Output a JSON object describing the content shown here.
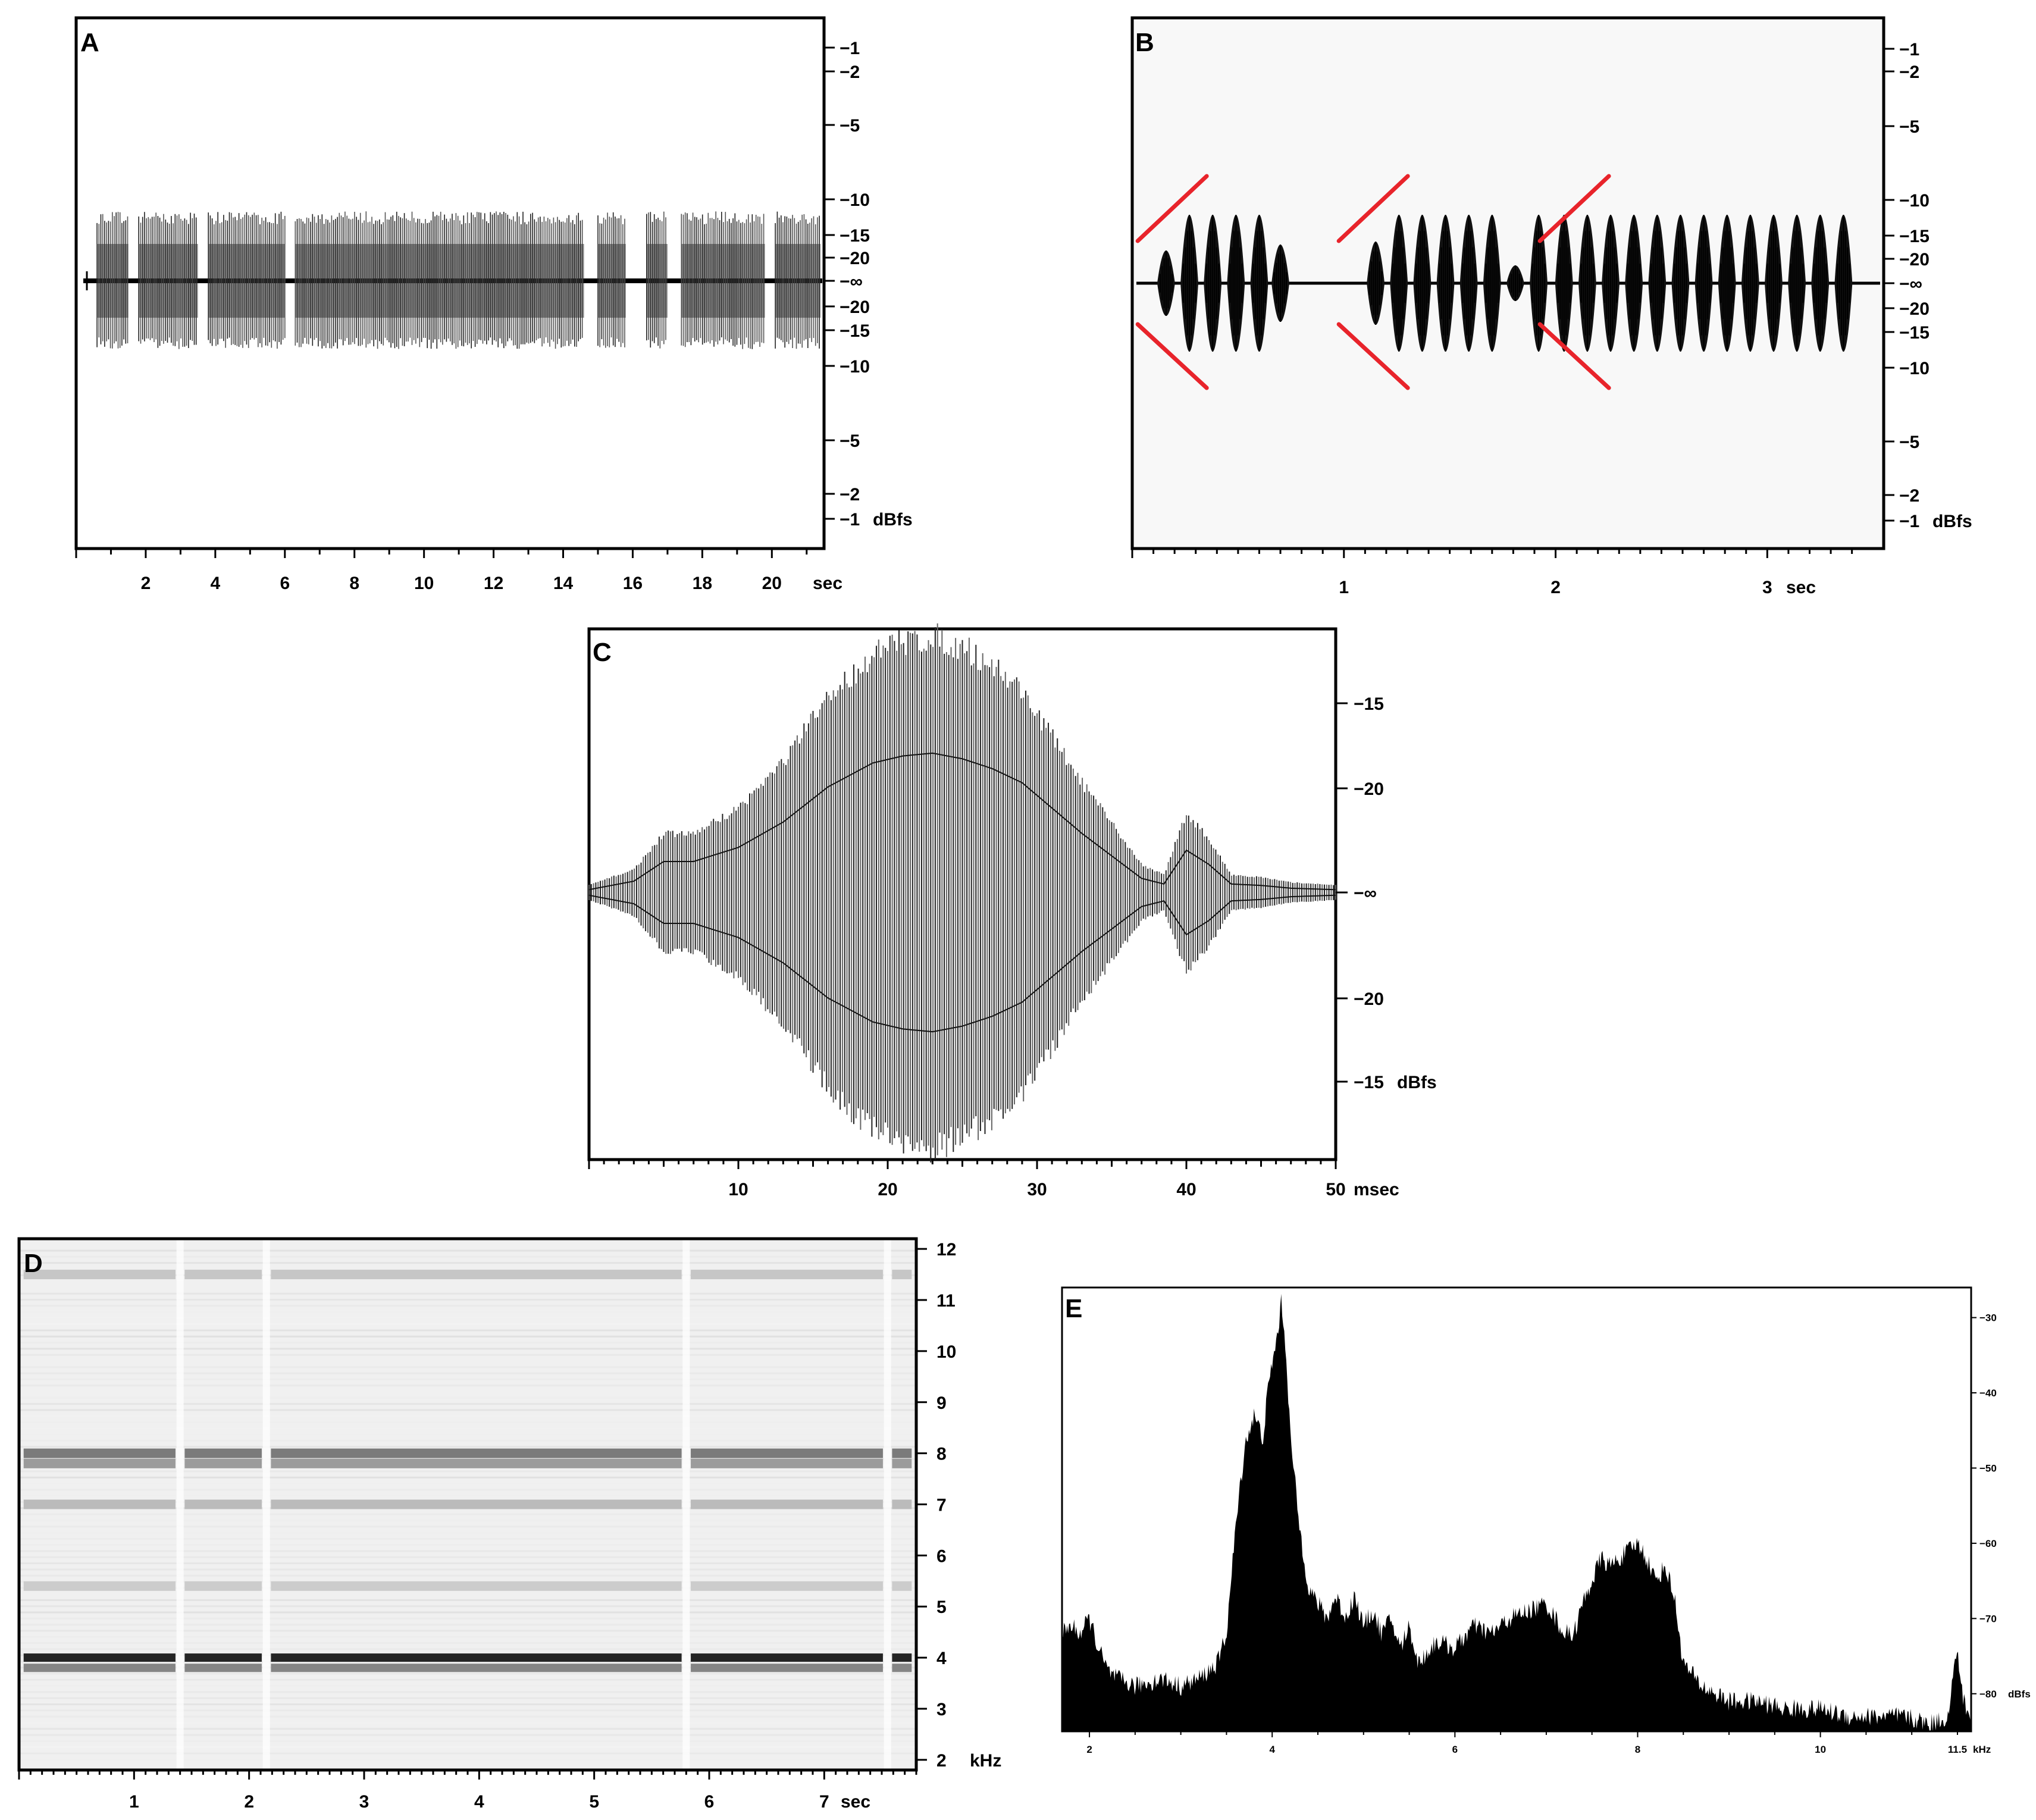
{
  "figure": {
    "colors": {
      "ink": "#000000",
      "wave_grey": "#333333",
      "marker_red": "#e8242b",
      "panel_b_bg": "#f8f8f8",
      "spectrogram_bg": "#f0f0f0"
    }
  },
  "chart_data": [
    {
      "panel": "A",
      "type": "line",
      "description_kind": "oscillogram",
      "x": {
        "unit_label": "sec",
        "range": [
          0,
          21.5
        ],
        "ticks": [
          "2",
          "4",
          "6",
          "8",
          "10",
          "12",
          "14",
          "16",
          "18",
          "20"
        ]
      },
      "y": {
        "unit_label": "dBfs",
        "ticks_upper": [
          "-1",
          "-2",
          "-5",
          "-10",
          "-15",
          "-20",
          "-∞"
        ],
        "ticks_lower": [
          "-20",
          "-15",
          "-10",
          "-5",
          "-2",
          "-1"
        ],
        "scale": "dB symmetric"
      },
      "bursts": [
        [
          0.6,
          1.5
        ],
        [
          1.8,
          3.5
        ],
        [
          3.8,
          6.0
        ],
        [
          6.3,
          14.6
        ],
        [
          15.0,
          15.8
        ],
        [
          16.4,
          17.0
        ],
        [
          17.4,
          19.8
        ],
        [
          20.1,
          21.4
        ]
      ]
    },
    {
      "panel": "B",
      "type": "line",
      "description_kind": "oscillogram",
      "x": {
        "unit_label": "sec",
        "range": [
          0,
          3.55
        ],
        "ticks": [
          "1",
          "2",
          "3"
        ]
      },
      "y": {
        "unit_label": "dBfs",
        "ticks_upper": [
          "-1",
          "-2",
          "-5",
          "-10",
          "-15",
          "-20",
          "-∞"
        ],
        "ticks_lower": [
          "-20",
          "-15",
          "-10",
          "-5",
          "-2",
          "-1"
        ],
        "scale": "dB symmetric"
      },
      "pulses_sec": [
        0.16,
        0.27,
        0.38,
        0.49,
        0.6,
        0.7,
        1.15,
        1.26,
        1.37,
        1.48,
        1.59,
        1.7,
        1.81,
        1.92,
        2.04,
        2.15,
        2.26,
        2.37,
        2.48,
        2.59,
        2.7,
        2.81,
        2.92,
        3.03,
        3.14,
        3.25,
        3.36
      ],
      "marker_times_sec": [
        0.2,
        1.15,
        2.1
      ]
    },
    {
      "panel": "C",
      "type": "line",
      "description_kind": "oscillogram of a single pulse",
      "x": {
        "unit_label": "msec",
        "range": [
          0,
          50
        ],
        "ticks": [
          "10",
          "20",
          "30",
          "40",
          "50"
        ]
      },
      "y": {
        "unit_label": "dBfs",
        "ticks": [
          "-15",
          "-20",
          "-∞",
          "-20",
          "-15"
        ],
        "scale": "dB symmetric"
      },
      "envelope": {
        "t_ms": [
          0,
          3,
          5,
          7,
          10,
          13,
          16,
          19,
          21,
          23,
          25,
          27,
          29,
          31,
          33,
          35,
          37,
          38.5,
          40,
          41.5,
          43,
          45,
          47,
          50
        ],
        "amp": [
          0.02,
          0.08,
          0.22,
          0.22,
          0.32,
          0.5,
          0.75,
          0.92,
          0.97,
          0.99,
          0.95,
          0.88,
          0.78,
          0.6,
          0.42,
          0.26,
          0.1,
          0.06,
          0.3,
          0.2,
          0.06,
          0.05,
          0.03,
          0.02
        ]
      }
    },
    {
      "panel": "D",
      "type": "heatmap",
      "description_kind": "spectrogram",
      "x": {
        "unit_label": "sec",
        "range": [
          0,
          7.8
        ],
        "ticks": [
          "1",
          "2",
          "3",
          "4",
          "5",
          "6",
          "7"
        ]
      },
      "y": {
        "unit_label": "kHz",
        "range": [
          1.8,
          12.2
        ],
        "ticks": [
          "12",
          "11",
          "10",
          "9",
          "8",
          "7",
          "6",
          "5",
          "4",
          "3",
          "2"
        ]
      },
      "gaps_sec": [
        1.4,
        2.15,
        5.8,
        7.55
      ],
      "bands_khz": [
        {
          "f": 4.0,
          "strength": 0.9
        },
        {
          "f": 3.8,
          "strength": 0.45
        },
        {
          "f": 8.0,
          "strength": 0.5
        },
        {
          "f": 7.8,
          "strength": 0.35
        },
        {
          "f": 7.0,
          "strength": 0.2
        },
        {
          "f": 5.4,
          "strength": 0.12
        },
        {
          "f": 11.5,
          "strength": 0.15
        }
      ]
    },
    {
      "panel": "E",
      "type": "area",
      "description_kind": "power spectrum",
      "x": {
        "unit_label": "kHz",
        "range": [
          1.7,
          11.65
        ],
        "ticks": [
          "2",
          "4",
          "6",
          "8",
          "10",
          "11.5"
        ]
      },
      "y": {
        "unit_label": "dBfs",
        "range": [
          -85,
          -26
        ],
        "ticks": [
          "-30",
          "-40",
          "-50",
          "-60",
          "-70",
          "-80"
        ]
      },
      "spectrum": {
        "khz": [
          1.7,
          1.8,
          1.9,
          2.0,
          2.1,
          2.2,
          2.3,
          2.5,
          2.8,
          3.0,
          3.2,
          3.4,
          3.5,
          3.6,
          3.7,
          3.8,
          3.9,
          3.95,
          4.0,
          4.05,
          4.1,
          4.15,
          4.2,
          4.3,
          4.4,
          4.5,
          4.6,
          4.7,
          4.8,
          4.9,
          5.0,
          5.1,
          5.2,
          5.3,
          5.4,
          5.5,
          5.6,
          5.8,
          6.0,
          6.2,
          6.4,
          6.6,
          6.8,
          7.0,
          7.1,
          7.2,
          7.3,
          7.4,
          7.5,
          7.6,
          7.7,
          7.8,
          7.9,
          8.0,
          8.1,
          8.2,
          8.3,
          8.4,
          8.5,
          8.7,
          9.0,
          9.3,
          9.6,
          10.0,
          10.3,
          10.6,
          10.9,
          11.2,
          11.4,
          11.45,
          11.5,
          11.55,
          11.65
        ],
        "db": [
          -72,
          -71,
          -72,
          -70,
          -74,
          -77,
          -78,
          -79,
          -78,
          -79,
          -78,
          -76,
          -72,
          -58,
          -47,
          -43,
          -46,
          -40,
          -36,
          -33,
          -28,
          -34,
          -46,
          -58,
          -66,
          -68,
          -70,
          -67,
          -70,
          -67,
          -71,
          -69,
          -72,
          -70,
          -74,
          -71,
          -76,
          -73,
          -74,
          -71,
          -72,
          -70,
          -69,
          -68,
          -70,
          -72,
          -72,
          -68,
          -65,
          -62,
          -63,
          -62,
          -61,
          -60,
          -62,
          -65,
          -63,
          -67,
          -76,
          -79,
          -81,
          -81,
          -82,
          -82,
          -83,
          -83,
          -83,
          -84,
          -83,
          -78,
          -74,
          -80,
          -84
        ]
      }
    }
  ]
}
